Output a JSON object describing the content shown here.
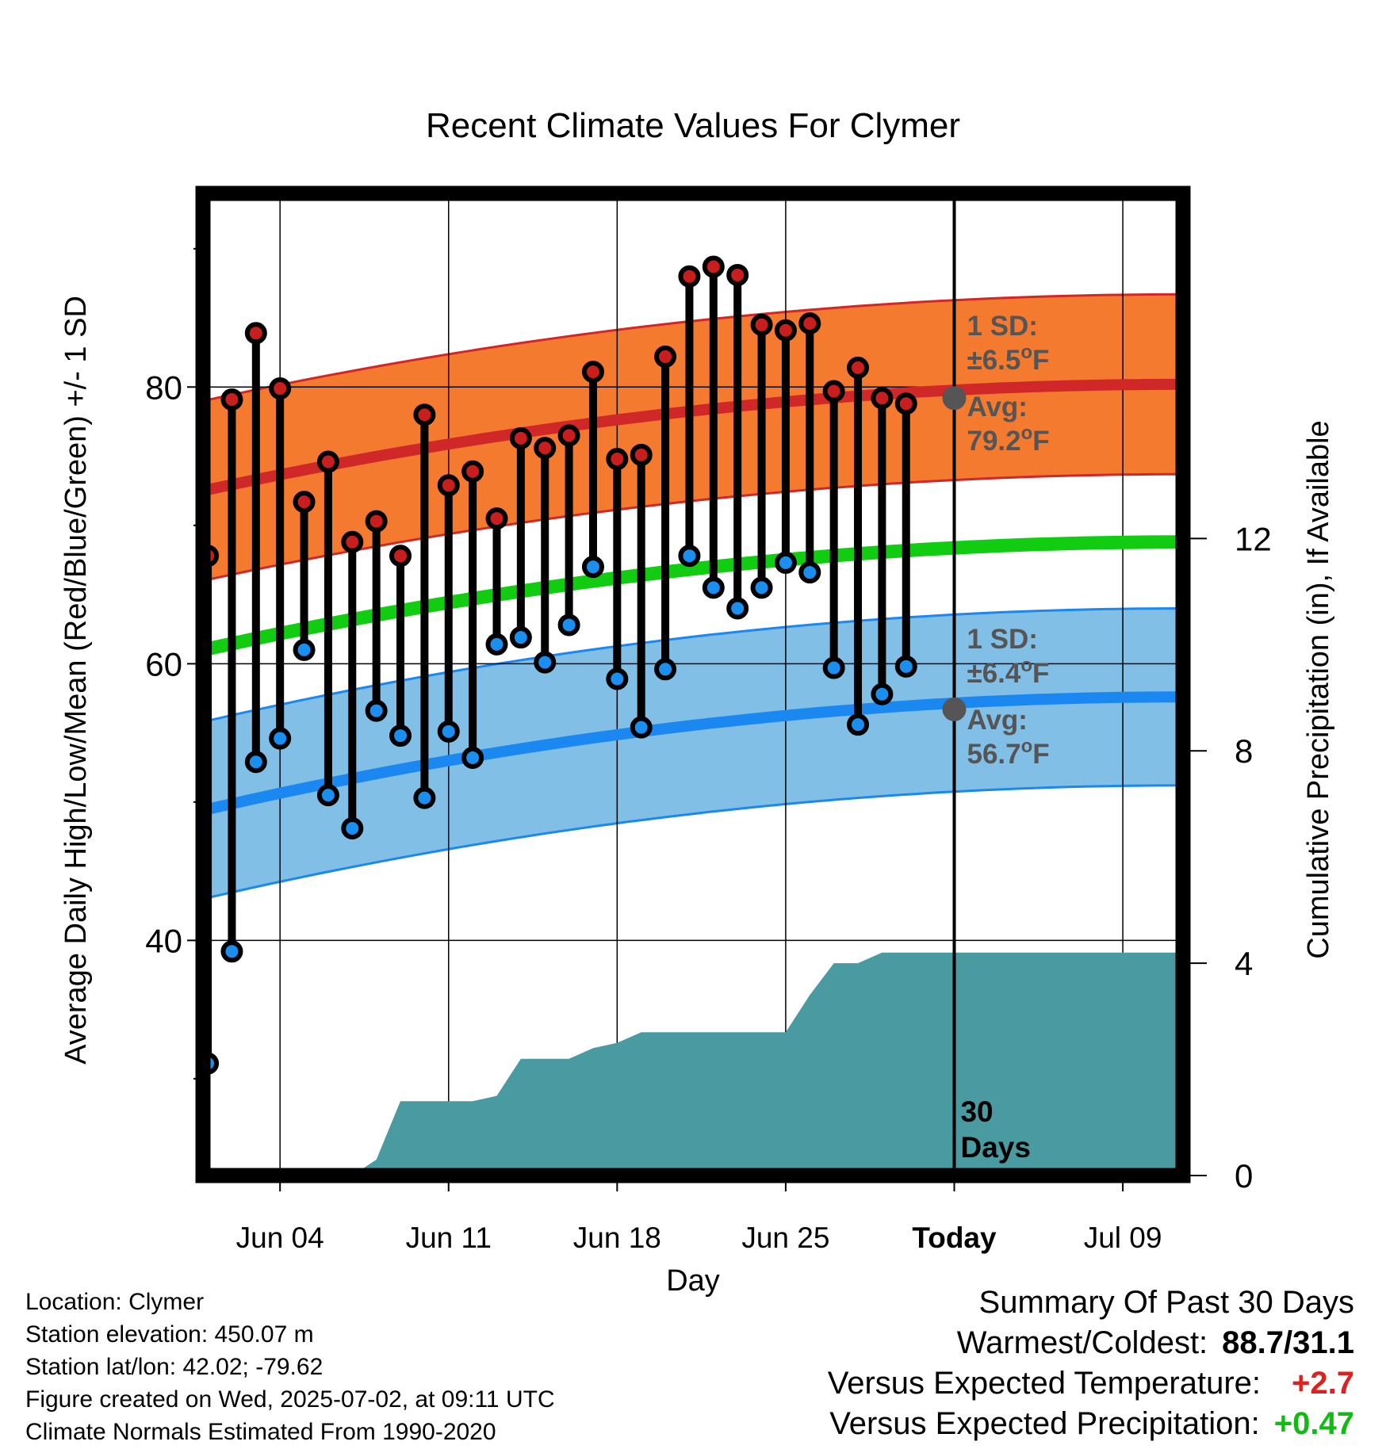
{
  "chart_data": {
    "type": "line",
    "title": "Recent Climate Values For Clymer",
    "xlabel": "Day",
    "ylabel": "Average Daily High/Low/Mean (Red/Blue/Green) +/- 1 SD",
    "y2label": "Cumulative Precipitation (in), If Available",
    "x_tick_labels": [
      "Jun 04",
      "Jun 11",
      "Jun 18",
      "Jun 25",
      "Today",
      "Jul 09"
    ],
    "x_tick_days": [
      4,
      11,
      18,
      25,
      32,
      39
    ],
    "xlim": [
      0.8,
      41.5
    ],
    "ylim": [
      23,
      94
    ],
    "y_ticks": [
      40,
      60,
      80
    ],
    "y2lim": [
      0,
      18.5
    ],
    "y2_ticks": [
      0,
      4,
      8,
      12
    ],
    "grid": true,
    "today_day": 32,
    "today_label": "30\nDays",
    "days": [
      1,
      2,
      3,
      4,
      5,
      6,
      7,
      8,
      9,
      10,
      11,
      12,
      13,
      14,
      15,
      16,
      17,
      18,
      19,
      20,
      21,
      22,
      23,
      24,
      25,
      26,
      27,
      28,
      29,
      30
    ],
    "daily_high": [
      67.8,
      79.1,
      83.9,
      79.9,
      71.7,
      74.6,
      68.8,
      70.3,
      67.8,
      78.0,
      72.9,
      73.9,
      70.5,
      76.3,
      75.6,
      76.5,
      81.1,
      74.8,
      75.1,
      82.2,
      88.0,
      88.7,
      88.1,
      84.5,
      84.1,
      84.6,
      79.7,
      81.4,
      79.2,
      78.8
    ],
    "daily_low": [
      31.1,
      39.2,
      52.9,
      54.6,
      61.0,
      50.5,
      48.1,
      56.6,
      54.8,
      50.3,
      55.1,
      53.2,
      61.4,
      61.9,
      60.1,
      62.8,
      67.0,
      58.9,
      55.4,
      59.6,
      67.8,
      65.5,
      64.0,
      65.5,
      67.3,
      66.6,
      59.7,
      55.6,
      57.8,
      59.8
    ],
    "normal_high": {
      "avg_start": 72.5,
      "avg_end": 80.2,
      "avg_today": 79.2,
      "sd": 6.5
    },
    "normal_low": {
      "avg_start": 49.4,
      "avg_end": 57.6,
      "avg_today": 56.7,
      "sd": 6.4
    },
    "normal_mean": {
      "start": 61.0,
      "end": 68.8
    },
    "precip_cumulative": {
      "days": [
        1,
        7,
        8,
        9,
        10,
        11,
        12,
        13,
        14,
        15,
        16,
        17,
        18,
        19,
        20,
        21,
        22,
        23,
        24,
        25,
        26,
        27,
        28,
        29,
        30,
        31,
        32,
        41.5
      ],
      "values": [
        0,
        0,
        0.3,
        1.4,
        1.4,
        1.4,
        1.4,
        1.5,
        2.2,
        2.2,
        2.2,
        2.4,
        2.5,
        2.7,
        2.7,
        2.7,
        2.7,
        2.7,
        2.7,
        2.7,
        3.4,
        4.0,
        4.0,
        4.2,
        4.2,
        4.2,
        4.2,
        4.2
      ]
    },
    "annotations": {
      "high_sd": "1 SD:",
      "high_sd_value": "±6.5°F",
      "high_avg": "Avg:",
      "high_avg_value": "79.2°F",
      "low_sd": "1 SD:",
      "low_sd_value": "±6.4°F",
      "low_avg": "Avg:",
      "low_avg_value": "56.7°F"
    },
    "colors": {
      "high_band": "#f47a30",
      "high_line": "#d02828",
      "low_band": "#82bfe6",
      "low_line": "#1a88f0",
      "mean_line": "#12cc12",
      "precip": "#4a9aa2",
      "high_marker": "#c81e1e",
      "low_marker": "#1a8ff0",
      "today_marker": "#555555",
      "annotation_text": "#555555"
    }
  },
  "footer": {
    "location": "Location: Clymer",
    "elevation": "Station elevation: 450.07 m",
    "latlon": "Station lat/lon: 42.02; -79.62",
    "created": "Figure created on Wed, 2025-07-02, at 09:11 UTC",
    "normals": "Climate Normals Estimated From 1990-2020"
  },
  "summary": {
    "title": "Summary Of Past 30 Days",
    "warmest_label": "Warmest/Coldest:",
    "warmest_value": "88.7/31.1",
    "temp_label": "Versus Expected Temperature:",
    "temp_value": "+2.7",
    "temp_color": "#dd2020",
    "precip_label": "Versus Expected Precipitation:",
    "precip_value": "+0.47",
    "precip_color": "#11bb11"
  }
}
